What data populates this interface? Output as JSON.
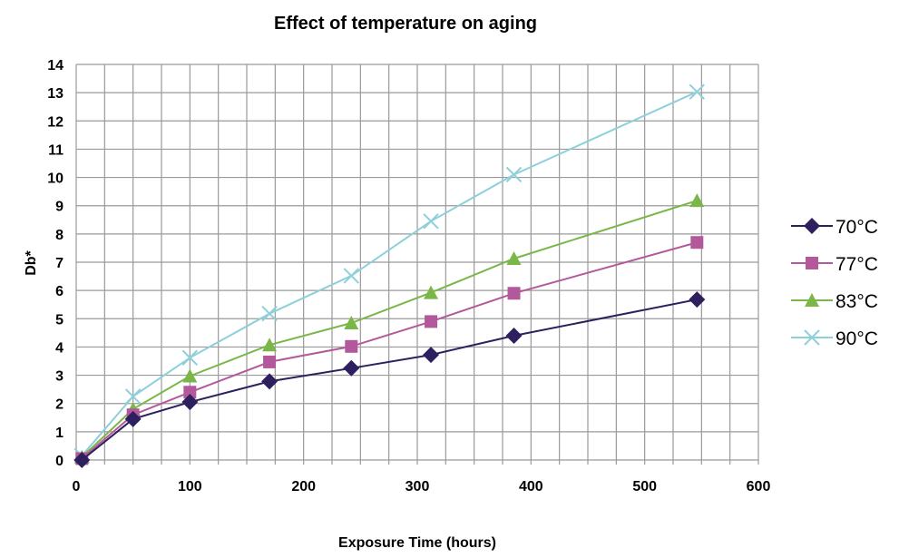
{
  "chart_data": {
    "type": "line",
    "title": "Effect of temperature on aging",
    "xlabel": "Exposure Time (hours)",
    "ylabel": "Db*",
    "xlim": [
      0,
      600
    ],
    "ylim": [
      0,
      14
    ],
    "x_ticks": [
      "0",
      "100",
      "200",
      "300",
      "400",
      "500",
      "600"
    ],
    "y_ticks": [
      "0",
      "1",
      "2",
      "3",
      "4",
      "5",
      "6",
      "7",
      "8",
      "9",
      "10",
      "11",
      "12",
      "13",
      "14"
    ],
    "grid": true,
    "legend_position": "right",
    "x": [
      5,
      50,
      100,
      170,
      242,
      312,
      385,
      546
    ],
    "series": [
      {
        "name": "70°C",
        "color": "#2e1f5e",
        "marker": "diamond",
        "values": [
          0.0,
          1.45,
          2.05,
          2.78,
          3.25,
          3.72,
          4.4,
          5.68
        ]
      },
      {
        "name": "77°C",
        "color": "#b3599b",
        "marker": "square",
        "values": [
          0.05,
          1.6,
          2.4,
          3.47,
          4.02,
          4.9,
          5.9,
          7.7
        ]
      },
      {
        "name": "83°C",
        "color": "#7ab648",
        "marker": "triangle",
        "values": [
          0.1,
          1.8,
          2.97,
          4.07,
          4.85,
          5.92,
          7.13,
          9.18
        ]
      },
      {
        "name": "90°C",
        "color": "#8ecfdc",
        "marker": "x",
        "values": [
          0.15,
          2.25,
          3.62,
          5.18,
          6.52,
          8.45,
          10.1,
          13.03
        ]
      }
    ]
  }
}
